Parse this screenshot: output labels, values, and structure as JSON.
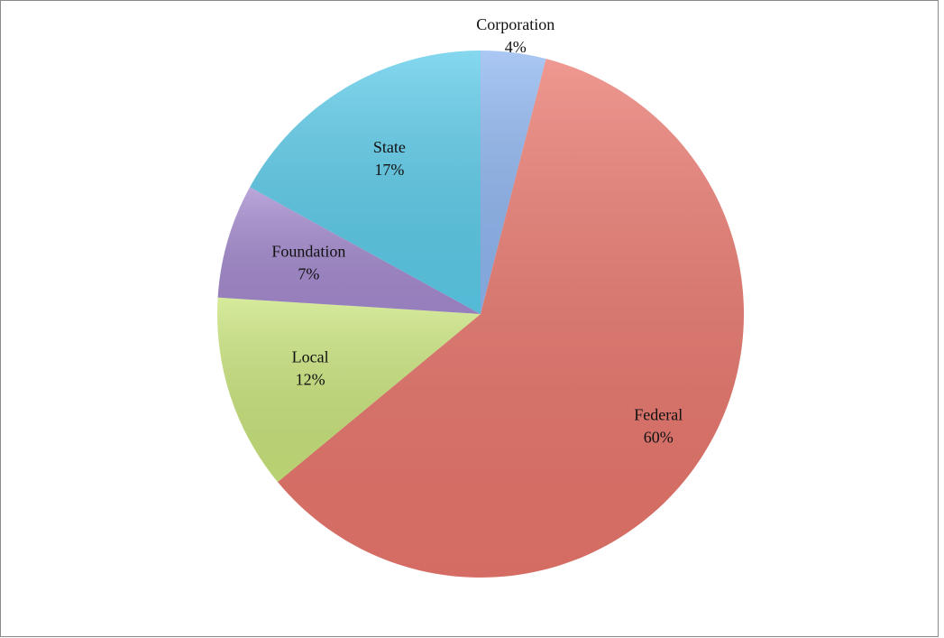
{
  "chart_data": {
    "type": "pie",
    "categories": [
      "Corporation",
      "Federal",
      "Local",
      "Foundation",
      "State"
    ],
    "values": [
      4,
      60,
      12,
      7,
      17
    ],
    "value_labels": [
      "4%",
      "60%",
      "12%",
      "7%",
      "17%"
    ],
    "colors": [
      "#8fb6f0",
      "#e8766c",
      "#c9e47c",
      "#a48ace",
      "#5ccbe9"
    ]
  }
}
